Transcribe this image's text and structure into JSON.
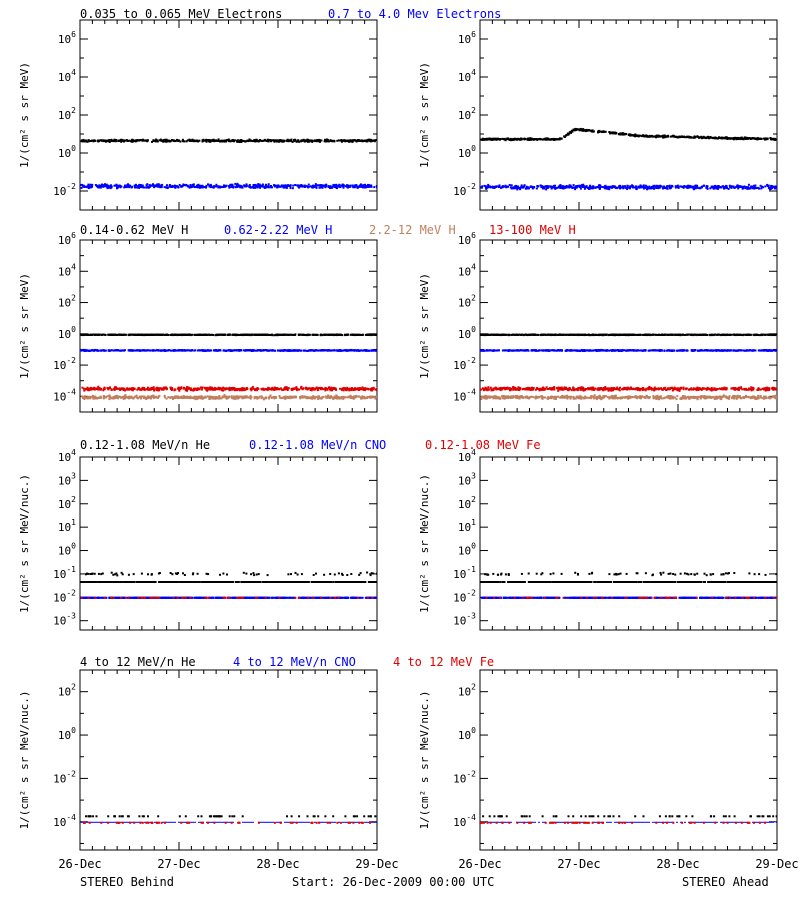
{
  "footer": {
    "left": "STEREO Behind",
    "center": "Start: 26-Dec-2009 00:00 UTC",
    "right": "STEREO Ahead"
  },
  "x_tick_labels": [
    "26-Dec",
    "27-Dec",
    "28-Dec",
    "29-Dec"
  ],
  "legend_rows": [
    [
      {
        "text": "0.035 to 0.065 MeV Electrons",
        "color": "#000000"
      },
      {
        "text": "0.7 to 4.0 Mev Electrons",
        "color": "#0000ff"
      }
    ],
    [
      {
        "text": "0.14-0.62 MeV H",
        "color": "#000000"
      },
      {
        "text": "0.62-2.22 MeV H",
        "color": "#0000ff"
      },
      {
        "text": "2.2-12 MeV H",
        "color": "#c08060"
      },
      {
        "text": "13-100 MeV H",
        "color": "#e00000"
      }
    ],
    [
      {
        "text": "0.12-1.08 MeV/n He",
        "color": "#000000"
      },
      {
        "text": "0.12-1.08 MeV/n CNO",
        "color": "#0000ff"
      },
      {
        "text": "0.12-1.08 MeV Fe",
        "color": "#e00000"
      }
    ],
    [
      {
        "text": "4 to 12 MeV/n He",
        "color": "#000000"
      },
      {
        "text": "4 to 12 MeV/n CNO",
        "color": "#0000ff"
      },
      {
        "text": "4 to 12 MeV Fe",
        "color": "#e00000"
      }
    ]
  ],
  "chart_data": [
    {
      "type": "scatter",
      "row": 0,
      "spacecraft": "STEREO Behind",
      "scale": "log",
      "ylim": [
        0.001,
        10000000.0
      ],
      "ylabel": "1/(cm² s sr MeV)",
      "ytick_labels": [
        "10^-2",
        "10^0",
        "10^2",
        "10^4",
        "10^6"
      ],
      "xlim_days": [
        0,
        3
      ],
      "series": [
        {
          "name": "0.035 to 0.065 MeV Electrons",
          "color": "#000000",
          "level": 5,
          "spread": 0.08,
          "events": []
        },
        {
          "name": "0.7 to 4.0 Mev Electrons",
          "color": "#0000ff",
          "level": 0.02,
          "spread": 0.15,
          "events": []
        }
      ]
    },
    {
      "type": "scatter",
      "row": 0,
      "spacecraft": "STEREO Ahead",
      "scale": "log",
      "ylim": [
        0.001,
        10000000.0
      ],
      "ylabel": "1/(cm² s sr MeV)",
      "ytick_labels": [
        "10^-2",
        "10^0",
        "10^2",
        "10^4",
        "10^6"
      ],
      "xlim_days": [
        0,
        3
      ],
      "series": [
        {
          "name": "0.035 to 0.065 MeV Electrons",
          "color": "#000000",
          "level": 6,
          "spread": 0.07,
          "events": [
            {
              "start": 0.8,
              "peak": 0.95,
              "end": 1.6,
              "peak_value": 20,
              "end_value": 9
            }
          ]
        },
        {
          "name": "0.7 to 4.0 Mev Electrons",
          "color": "#0000ff",
          "level": 0.018,
          "spread": 0.15,
          "events": []
        }
      ]
    },
    {
      "type": "scatter",
      "row": 1,
      "spacecraft": "STEREO Behind",
      "scale": "log",
      "ylim": [
        1e-05,
        1000000.0
      ],
      "ylabel": "1/(cm² s sr MeV)",
      "ytick_labels": [
        "10^-4",
        "10^-2",
        "10^0",
        "10^2",
        "10^4",
        "10^6"
      ],
      "xlim_days": [
        0,
        3
      ],
      "series": [
        {
          "name": "0.14-0.62 MeV H",
          "color": "#000000",
          "level": 1.0,
          "spread": 0.03,
          "events": []
        },
        {
          "name": "0.62-2.22 MeV H",
          "color": "#0000ff",
          "level": 0.1,
          "spread": 0.04,
          "events": []
        },
        {
          "name": "2.2-12 MeV H",
          "color": "#c08060",
          "level": 0.0001,
          "spread": 0.15,
          "events": []
        },
        {
          "name": "13-100 MeV H",
          "color": "#e00000",
          "level": 0.00035,
          "spread": 0.15,
          "events": []
        }
      ]
    },
    {
      "type": "scatter",
      "row": 1,
      "spacecraft": "STEREO Ahead",
      "scale": "log",
      "ylim": [
        1e-05,
        1000000.0
      ],
      "ylabel": "1/(cm² s sr MeV)",
      "ytick_labels": [
        "10^-4",
        "10^-2",
        "10^0",
        "10^2",
        "10^4",
        "10^6"
      ],
      "xlim_days": [
        0,
        3
      ],
      "series": [
        {
          "name": "0.14-0.62 MeV H",
          "color": "#000000",
          "level": 1.0,
          "spread": 0.03,
          "events": []
        },
        {
          "name": "0.62-2.22 MeV H",
          "color": "#0000ff",
          "level": 0.1,
          "spread": 0.04,
          "events": []
        },
        {
          "name": "2.2-12 MeV H",
          "color": "#c08060",
          "level": 0.0001,
          "spread": 0.15,
          "events": []
        },
        {
          "name": "13-100 MeV H",
          "color": "#e00000",
          "level": 0.00035,
          "spread": 0.15,
          "events": []
        }
      ]
    },
    {
      "type": "scatter",
      "row": 2,
      "spacecraft": "STEREO Behind",
      "scale": "log",
      "ylim": [
        0.0004,
        10000.0
      ],
      "ylabel": "1/(cm² s sr MeV/nuc.)",
      "ytick_labels": [
        "10^-3",
        "10^-2",
        "10^-1",
        "10^0",
        "10^1",
        "10^2",
        "10^3",
        "10^4"
      ],
      "xlim_days": [
        0,
        3
      ],
      "series": [
        {
          "name": "0.12-1.08 MeV/n He",
          "color": "#000000",
          "level": 0.05,
          "spread": 0.0,
          "sparse_upper": 0.11,
          "events": []
        },
        {
          "name": "0.12-1.08 MeV/n CNO",
          "color": "#0000ff",
          "level": 0.0105,
          "spread": 0.0,
          "events": []
        },
        {
          "name": "0.12-1.08 MeV Fe",
          "color": "#e00000",
          "level": 0.0105,
          "spread": 0.0,
          "sparse": true,
          "events": []
        }
      ]
    },
    {
      "type": "scatter",
      "row": 2,
      "spacecraft": "STEREO Ahead",
      "scale": "log",
      "ylim": [
        0.0004,
        10000.0
      ],
      "ylabel": "1/(cm² s sr MeV/nuc.)",
      "ytick_labels": [
        "10^-3",
        "10^-2",
        "10^-1",
        "10^0",
        "10^1",
        "10^2",
        "10^3",
        "10^4"
      ],
      "xlim_days": [
        0,
        3
      ],
      "series": [
        {
          "name": "0.12-1.08 MeV/n He",
          "color": "#000000",
          "level": 0.05,
          "spread": 0.0,
          "sparse_upper": 0.11,
          "events": []
        },
        {
          "name": "0.12-1.08 MeV/n CNO",
          "color": "#0000ff",
          "level": 0.0105,
          "spread": 0.0,
          "events": []
        },
        {
          "name": "0.12-1.08 MeV Fe",
          "color": "#e00000",
          "level": 0.0105,
          "spread": 0.0,
          "sparse": true,
          "events": []
        }
      ]
    },
    {
      "type": "scatter",
      "row": 3,
      "spacecraft": "STEREO Behind",
      "scale": "log",
      "ylim": [
        5e-06,
        1000.0
      ],
      "ylabel": "1/(cm² s sr MeV/nuc.)",
      "ytick_labels": [
        "10^-4",
        "10^-2",
        "10^0",
        "10^2"
      ],
      "xlim_days": [
        0,
        3
      ],
      "series": [
        {
          "name": "4 to 12 MeV/n He",
          "color": "#000000",
          "level": 0.0002,
          "spread": 0.0,
          "sparse": true,
          "events": []
        },
        {
          "name": "4 to 12 MeV/n CNO",
          "color": "#0000ff",
          "level": 0.0001,
          "spread": 0.0,
          "line": true,
          "events": []
        },
        {
          "name": "4 to 12 MeV Fe",
          "color": "#e00000",
          "level": 0.0001,
          "spread": 0.0,
          "sparse": true,
          "events": []
        }
      ]
    },
    {
      "type": "scatter",
      "row": 3,
      "spacecraft": "STEREO Ahead",
      "scale": "log",
      "ylim": [
        5e-06,
        1000.0
      ],
      "ylabel": "1/(cm² s sr MeV/nuc.)",
      "ytick_labels": [
        "10^-4",
        "10^-2",
        "10^0",
        "10^2"
      ],
      "xlim_days": [
        0,
        3
      ],
      "series": [
        {
          "name": "4 to 12 MeV/n He",
          "color": "#000000",
          "level": 0.0002,
          "spread": 0.0,
          "sparse": true,
          "events": []
        },
        {
          "name": "4 to 12 MeV/n CNO",
          "color": "#0000ff",
          "level": 0.0001,
          "spread": 0.0,
          "line": true,
          "events": []
        },
        {
          "name": "4 to 12 MeV Fe",
          "color": "#e00000",
          "level": 0.0001,
          "spread": 0.0,
          "sparse": true,
          "events": []
        }
      ]
    }
  ]
}
